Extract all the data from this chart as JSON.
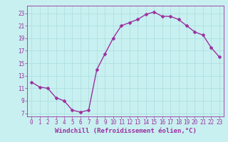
{
  "x": [
    0,
    1,
    2,
    3,
    4,
    5,
    6,
    7,
    8,
    9,
    10,
    11,
    12,
    13,
    14,
    15,
    16,
    17,
    18,
    19,
    20,
    21,
    22,
    23
  ],
  "y": [
    12,
    11.2,
    11,
    9.5,
    9,
    7.5,
    7.2,
    7.5,
    14,
    16.5,
    19,
    21,
    21.5,
    22,
    22.8,
    23.2,
    22.5,
    22.5,
    22,
    21,
    20,
    19.5,
    17.5,
    16
  ],
  "line_color": "#9B30A0",
  "marker_color": "#9B30A0",
  "bg_color": "#C8F0F0",
  "grid_color": "#AADDDD",
  "xlabel": "Windchill (Refroidissement éolien,°C)",
  "yticks": [
    7,
    9,
    11,
    13,
    15,
    17,
    19,
    21,
    23
  ],
  "xticks": [
    0,
    1,
    2,
    3,
    4,
    5,
    6,
    7,
    8,
    9,
    10,
    11,
    12,
    13,
    14,
    15,
    16,
    17,
    18,
    19,
    20,
    21,
    22,
    23
  ],
  "ylim": [
    6.5,
    24.2
  ],
  "xlim": [
    -0.5,
    23.5
  ],
  "xlabel_fontsize": 6.5,
  "tick_fontsize": 5.5,
  "line_width": 1.0,
  "marker_size": 2.5
}
